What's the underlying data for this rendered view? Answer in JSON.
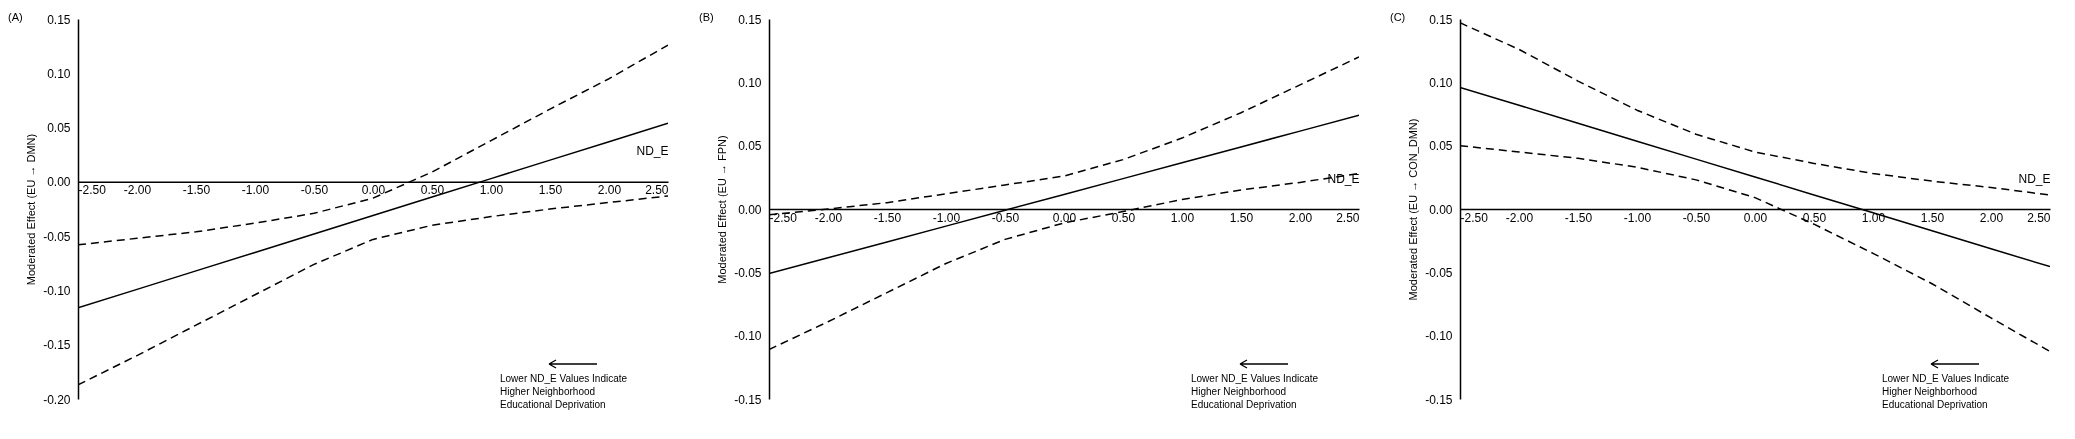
{
  "chart_data": [
    {
      "type": "line",
      "title": "(A)",
      "xlabel": "ND_E",
      "ylabel": "Moderated Effect (EU → DMN)",
      "x": [
        -2.5,
        -2,
        -1.5,
        -1,
        -0.5,
        0,
        0.5,
        1,
        1.5,
        2,
        2.5
      ],
      "xlim": [
        -2.5,
        2.5
      ],
      "ylim": [
        -0.2,
        0.15
      ],
      "xticks": [
        {
          "value": -2.5,
          "label": "-2.50"
        },
        {
          "value": -2,
          "label": "-2.00"
        },
        {
          "value": -1.5,
          "label": "-1.50"
        },
        {
          "value": -1,
          "label": "-1.00"
        },
        {
          "value": -0.5,
          "label": "-0.50"
        },
        {
          "value": 0,
          "label": "0.00"
        },
        {
          "value": 0.5,
          "label": "0.50"
        },
        {
          "value": 1,
          "label": "1.00"
        },
        {
          "value": 1.5,
          "label": "1.50"
        },
        {
          "value": 2,
          "label": "2.00"
        },
        {
          "value": 2.5,
          "label": "2.50"
        }
      ],
      "yticks": [
        {
          "value": -0.2,
          "label": "-0.20"
        },
        -0.15,
        {
          "value": -0.1,
          "label": "-0.10"
        },
        -0.05,
        {
          "value": 0,
          "label": "0.00"
        },
        0.05,
        {
          "value": 0.1,
          "label": "0.10"
        },
        0.15
      ],
      "series": [
        {
          "color": "#000000",
          "line_style": "solid",
          "values": [
            -0.116,
            -0.099,
            -0.082,
            -0.065,
            -0.048,
            -0.031,
            -0.014,
            0.003,
            0.02,
            0.037,
            0.054
          ]
        },
        {
          "color": "#000000",
          "line_style": "dashed",
          "values": [
            -0.058,
            -0.052,
            -0.046,
            -0.038,
            -0.029,
            -0.015,
            0.009,
            0.038,
            0.067,
            0.095,
            0.126
          ]
        },
        {
          "color": "#000000",
          "line_style": "dashed",
          "values": [
            -0.187,
            -0.16,
            -0.132,
            -0.104,
            -0.076,
            -0.053,
            -0.04,
            -0.032,
            -0.025,
            -0.019,
            -0.013
          ]
        }
      ],
      "annotations": [
        "Lower ND_E Values Indicate Higher Neighborhood Educational Deprivation"
      ]
    },
    {
      "type": "line",
      "title": "(B)",
      "xlabel": "ND_E",
      "ylabel": "Moderated Effect (EU → FPN)",
      "x": [
        -2.5,
        -2,
        -1.5,
        -1,
        -0.5,
        0,
        0.5,
        1,
        1.5,
        2,
        2.5
      ],
      "xlim": [
        -2.5,
        2.5
      ],
      "ylim": [
        -0.15,
        0.15
      ],
      "xticks": [
        {
          "value": -2.5,
          "label": "-2.50"
        },
        {
          "value": -2,
          "label": "-2.00"
        },
        {
          "value": -1.5,
          "label": "-1.50"
        },
        {
          "value": -1,
          "label": "-1.00"
        },
        {
          "value": -0.5,
          "label": "-0.50"
        },
        {
          "value": 0,
          "label": "0.00"
        },
        {
          "value": 0.5,
          "label": "0.50"
        },
        {
          "value": 1,
          "label": "1.00"
        },
        {
          "value": 1.5,
          "label": "1.50"
        },
        {
          "value": 2,
          "label": "2.00"
        },
        {
          "value": 2.5,
          "label": "2.50"
        }
      ],
      "yticks": [
        -0.15,
        {
          "value": -0.1,
          "label": "-0.10"
        },
        -0.05,
        {
          "value": 0,
          "label": "0.00"
        },
        0.05,
        {
          "value": 0.1,
          "label": "0.10"
        },
        0.15
      ],
      "series": [
        {
          "color": "#000000",
          "line_style": "solid",
          "values": [
            -0.051,
            -0.0385,
            -0.026,
            -0.0135,
            -0.001,
            0.0115,
            0.024,
            0.0365,
            0.049,
            0.0615,
            0.074
          ]
        },
        {
          "color": "#000000",
          "line_style": "dashed",
          "values": [
            -0.0045,
            0.0,
            0.005,
            0.012,
            0.019,
            0.026,
            0.039,
            0.056,
            0.076,
            0.098,
            0.12
          ]
        },
        {
          "color": "#000000",
          "line_style": "dashed",
          "values": [
            -0.111,
            -0.089,
            -0.066,
            -0.043,
            -0.024,
            -0.011,
            -0.002,
            0.0075,
            0.015,
            0.021,
            0.028
          ]
        }
      ],
      "annotations": [
        "Lower ND_E Values Indicate Higher Neighborhood Educational Deprivation"
      ]
    },
    {
      "type": "line",
      "title": "(C)",
      "xlabel": "ND_E",
      "ylabel": "Moderated Effect (EU → CON_DMN)",
      "x": [
        -2.5,
        -2,
        -1.5,
        -1,
        -0.5,
        0,
        0.5,
        1,
        1.5,
        2,
        2.5
      ],
      "xlim": [
        -2.5,
        2.5
      ],
      "ylim": [
        -0.15,
        0.15
      ],
      "xticks": [
        {
          "value": -2.5,
          "label": "-2.50"
        },
        {
          "value": -2,
          "label": "-2.00"
        },
        {
          "value": -1.5,
          "label": "-1.50"
        },
        {
          "value": -1,
          "label": "-1.00"
        },
        {
          "value": -0.5,
          "label": "-0.50"
        },
        {
          "value": 0,
          "label": "0.00"
        },
        {
          "value": 0.5,
          "label": "0.50"
        },
        {
          "value": 1,
          "label": "1.00"
        },
        {
          "value": 1.5,
          "label": "1.50"
        },
        {
          "value": 2,
          "label": "2.00"
        },
        {
          "value": 2.5,
          "label": "2.50"
        }
      ],
      "yticks": [
        -0.15,
        {
          "value": -0.1,
          "label": "-0.10"
        },
        -0.05,
        {
          "value": 0,
          "label": "0.00"
        },
        0.05,
        {
          "value": 0.1,
          "label": "0.10"
        },
        0.15
      ],
      "series": [
        {
          "color": "#000000",
          "line_style": "solid",
          "values": [
            0.096,
            0.0819,
            0.0677,
            0.0535,
            0.0394,
            0.0253,
            0.0111,
            -0.003,
            -0.0172,
            -0.0314,
            -0.0455
          ]
        },
        {
          "color": "#000000",
          "line_style": "dashed",
          "values": [
            0.147,
            0.126,
            0.101,
            0.078,
            0.059,
            0.045,
            0.036,
            0.028,
            0.022,
            0.017,
            0.011
          ]
        },
        {
          "color": "#000000",
          "line_style": "dashed",
          "values": [
            0.05,
            0.045,
            0.04,
            0.033,
            0.023,
            0.009,
            -0.012,
            -0.035,
            -0.059,
            -0.086,
            -0.1125
          ]
        }
      ],
      "annotations": [
        "Lower ND_E Values Indicate Higher Neighborhood Educational Deprivation"
      ]
    }
  ]
}
